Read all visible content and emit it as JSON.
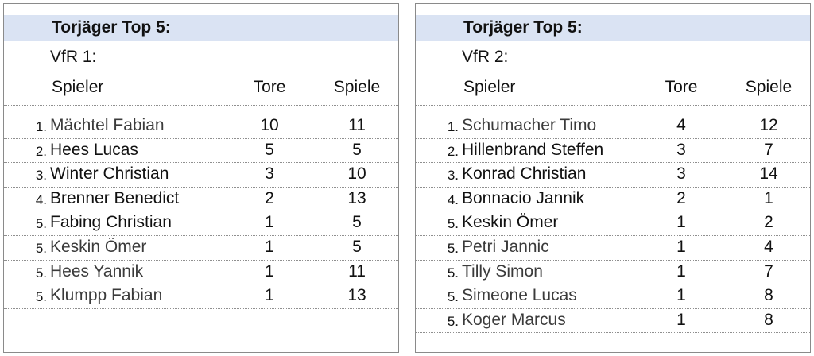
{
  "tables": [
    {
      "title": "Torjäger Top 5:",
      "team": "VfR 1:",
      "headers": {
        "player": "Spieler",
        "goals": "Tore",
        "games": "Spiele"
      },
      "rows": [
        {
          "rank": "1.",
          "name": "Mächtel Fabian",
          "goals": "10",
          "games": "11"
        },
        {
          "rank": "2.",
          "name": "Hees Lucas",
          "goals": "5",
          "games": "5"
        },
        {
          "rank": "3.",
          "name": "Winter Christian",
          "goals": "3",
          "games": "10"
        },
        {
          "rank": "4.",
          "name": "Brenner Benedict",
          "goals": "2",
          "games": "13"
        },
        {
          "rank": "5.",
          "name": "Fabing Christian",
          "goals": "1",
          "games": "5"
        },
        {
          "rank": "5.",
          "name": "Keskin Ömer",
          "goals": "1",
          "games": "5"
        },
        {
          "rank": "5.",
          "name": "Hees Yannik",
          "goals": "1",
          "games": "11"
        },
        {
          "rank": "5.",
          "name": "Klumpp Fabian",
          "goals": "1",
          "games": "13"
        }
      ]
    },
    {
      "title": "Torjäger Top 5:",
      "team": "VfR 2:",
      "headers": {
        "player": "Spieler",
        "goals": "Tore",
        "games": "Spiele"
      },
      "rows": [
        {
          "rank": "1.",
          "name": "Schumacher Timo",
          "goals": "4",
          "games": "12"
        },
        {
          "rank": "2.",
          "name": "Hillenbrand Steffen",
          "goals": "3",
          "games": "7"
        },
        {
          "rank": "3.",
          "name": "Konrad Christian",
          "goals": "3",
          "games": "14"
        },
        {
          "rank": "4.",
          "name": "Bonnacio Jannik",
          "goals": "2",
          "games": "1"
        },
        {
          "rank": "5.",
          "name": "Keskin Ömer",
          "goals": "1",
          "games": "2"
        },
        {
          "rank": "5.",
          "name": "Petri Jannic",
          "goals": "1",
          "games": "4"
        },
        {
          "rank": "5.",
          "name": "Tilly Simon",
          "goals": "1",
          "games": "7"
        },
        {
          "rank": "5.",
          "name": "Simeone Lucas",
          "goals": "1",
          "games": "8"
        },
        {
          "rank": "5.",
          "name": "Koger Marcus",
          "goals": "1",
          "games": "8"
        }
      ]
    }
  ],
  "colors": {
    "title_band": "#dae3f3",
    "border": "#8a8a8a",
    "dotted_rule": "#8f8f8f"
  }
}
